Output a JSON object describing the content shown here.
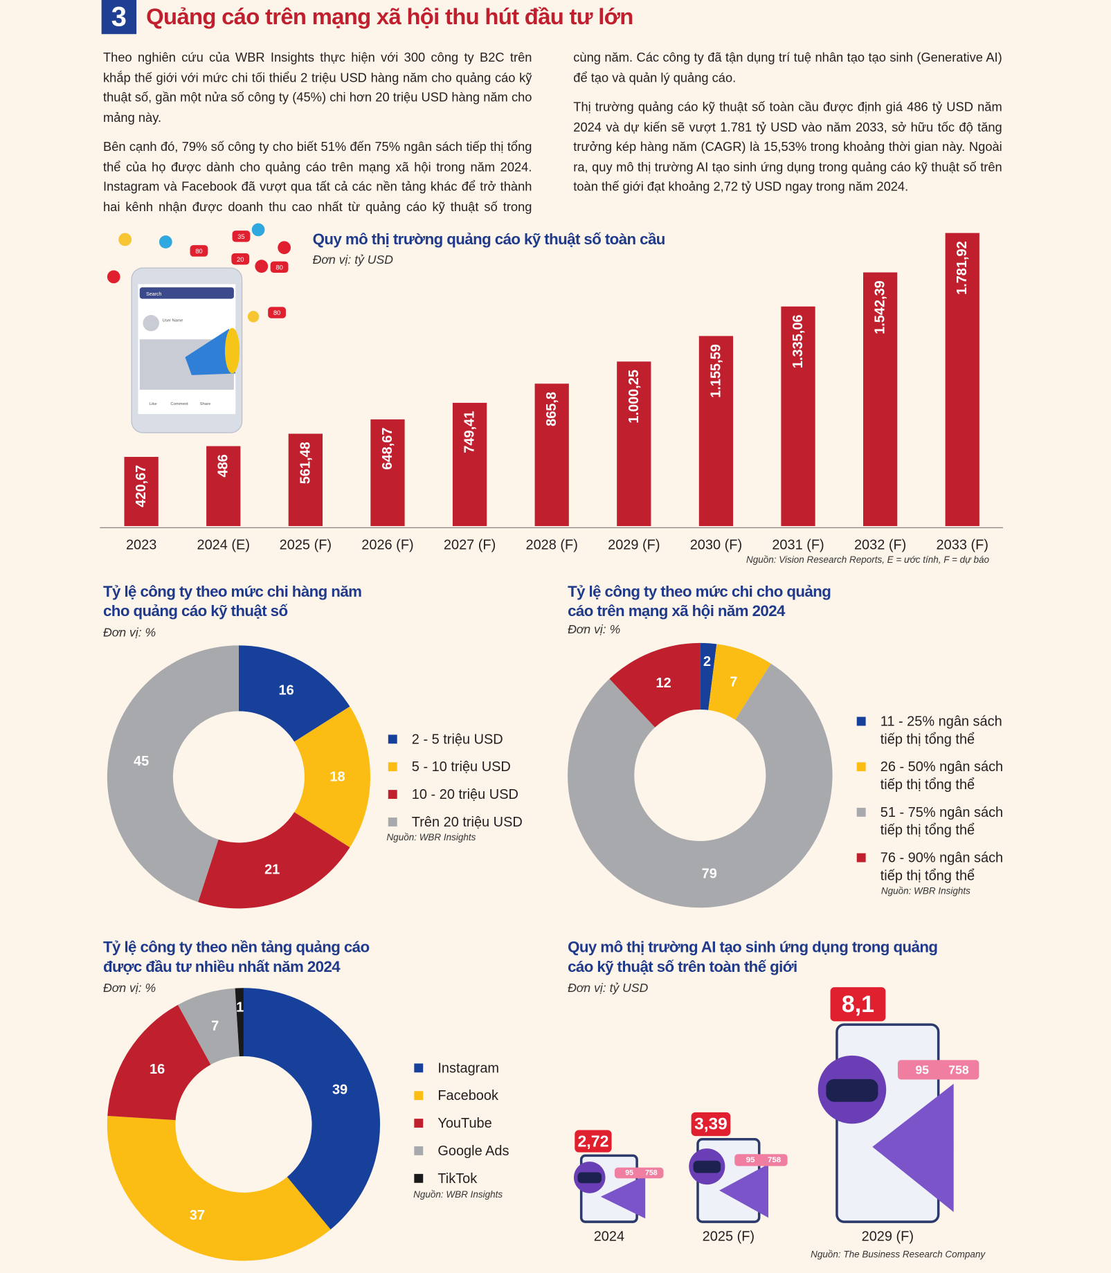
{
  "header": {
    "number": "3",
    "title": "Quảng cáo trên mạng xã hội thu hút đầu tư lớn"
  },
  "paragraphs": [
    "Theo nghiên cứu của WBR Insights thực hiện với 300 công ty B2C trên khắp thế giới với mức chi tối thiểu 2 triệu USD hàng năm cho quảng cáo kỹ thuật số, gần một nửa số công ty (45%) chi hơn 20 triệu USD hàng năm cho mảng này.",
    "Bên cạnh đó, 79% số công ty cho biết 51% đến 75% ngân sách tiếp thị tổng thể của họ được dành cho quảng cáo trên mạng xã hội trong năm 2024. Instagram và Facebook đã vượt qua tất cả các nền tảng khác để trở thành hai kênh nhận được doanh thu cao nhất từ quảng cáo kỹ thuật số trong cùng năm. Các công ty đã tận dụng trí tuệ nhân tạo tạo sinh (Generative AI) để tạo và quản lý quảng cáo.",
    "Thị trường quảng cáo kỹ thuật số toàn cầu được định giá 486 tỷ USD năm 2024 và dự kiến sẽ vượt 1.781 tỷ USD vào năm 2033, sở hữu tốc độ tăng trưởng kép hàng năm (CAGR) là 15,53% trong khoảng thời gian này. Ngoài ra, quy mô thị trường AI tạo sinh ứng dụng trong quảng cáo kỹ thuật số trên toàn thế giới đạt khoảng 2,72 tỷ USD ngay trong năm 2024."
  ],
  "illustration": {
    "search": "Search",
    "user": "User Name",
    "actions": [
      "Like",
      "Comment",
      "Share"
    ],
    "bubbles": [
      "35",
      "20",
      "80",
      "80",
      "80"
    ]
  },
  "chart_data": [
    {
      "type": "bar",
      "title": "Quy mô thị trường quảng cáo kỹ thuật số toàn cầu",
      "subtitle": "Đơn vị: tỷ USD",
      "categories": [
        "2023",
        "2024 (E)",
        "2025 (F)",
        "2026 (F)",
        "2027 (F)",
        "2028 (F)",
        "2029 (F)",
        "2030 (F)",
        "2031 (F)",
        "2032 (F)",
        "2033 (F)"
      ],
      "values": [
        420.67,
        486,
        561.48,
        648.67,
        749.41,
        865.8,
        1000.25,
        1155.59,
        1335.06,
        1542.39,
        1781.92
      ],
      "value_labels": [
        "420,67",
        "486",
        "561,48",
        "648,67",
        "749,41",
        "865,8",
        "1.000,25",
        "1.155,59",
        "1.335,06",
        "1.542,39",
        "1.781,92"
      ],
      "color": "#c0202e",
      "source": "Nguồn: Vision Research Reports, E = ước tính, F = dự báo"
    },
    {
      "type": "pie",
      "donut": true,
      "title": "Tỷ lệ công ty theo mức chi hàng năm cho quảng cáo kỹ thuật số",
      "subtitle": "Đơn vị: %",
      "categories": [
        "2 - 5 triệu USD",
        "5 - 10 triệu USD",
        "10  - 20 triệu USD",
        "Trên 20 triệu USD"
      ],
      "values": [
        16,
        18,
        21,
        45
      ],
      "colors": [
        "#17409a",
        "#fbbc13",
        "#c0202e",
        "#a7a9ac"
      ],
      "source": "Nguồn: WBR Insights"
    },
    {
      "type": "pie",
      "donut": true,
      "title": "Tỷ lệ công ty theo mức chi cho quảng cáo trên mạng xã hội năm 2024",
      "subtitle": "Đơn vị: %",
      "categories": [
        "11 - 25% ngân sách tiếp thị tổng thể",
        "26 - 50% ngân sách tiếp thị tổng thể",
        "51 - 75% ngân sách tiếp thị tổng thể",
        "76 - 90% ngân sách tiếp thị tổng thể"
      ],
      "values": [
        2,
        7,
        79,
        12
      ],
      "colors": [
        "#17409a",
        "#fbbc13",
        "#a7a9ac",
        "#c0202e"
      ],
      "source": "Nguồn: WBR Insights"
    },
    {
      "type": "pie",
      "donut": true,
      "title": "Tỷ lệ công ty theo nền tảng quảng cáo được đầu tư nhiều nhất năm 2024",
      "subtitle": "Đơn vị: %",
      "categories": [
        "Instagram",
        "Facebook",
        "YouTube",
        "Google Ads",
        "TikTok"
      ],
      "values": [
        39,
        37,
        16,
        7,
        1
      ],
      "colors": [
        "#17409a",
        "#fbbc13",
        "#c0202e",
        "#a7a9ac",
        "#1a1a1a"
      ],
      "source": "Nguồn: WBR Insights"
    },
    {
      "type": "pictograph",
      "title": "Quy mô thị trường AI tạo sinh ứng dụng trong quảng cáo kỹ thuật số trên toàn thế giới",
      "subtitle": "Đơn vị: tỷ USD",
      "categories": [
        "2024",
        "2025 (F)",
        "2029 (F)"
      ],
      "values": [
        2.72,
        3.39,
        8.1
      ],
      "value_labels": [
        "2,72",
        "3,39",
        "8,1"
      ],
      "badge_counts": [
        95,
        758
      ],
      "color": "#e0202e",
      "source": "Nguồn: The Business Research Company"
    }
  ]
}
